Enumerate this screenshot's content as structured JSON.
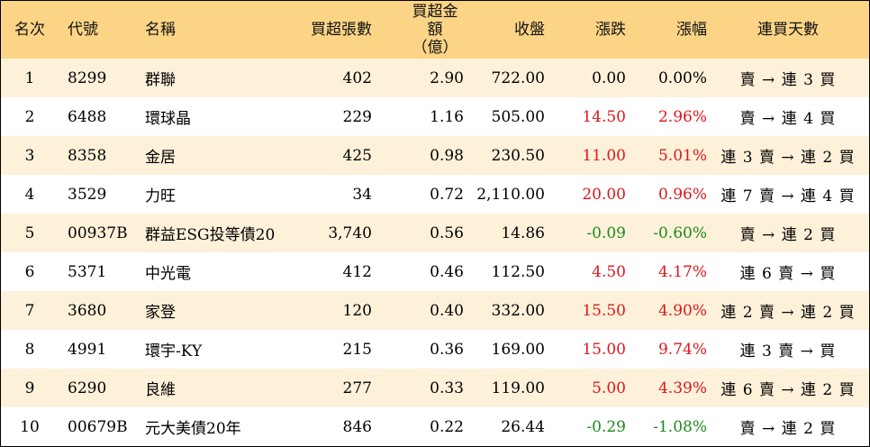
{
  "headers": {
    "rank": "名次",
    "code": "代號",
    "name": "名稱",
    "net_buy_lots": "買超張數",
    "net_buy_amount_line1": "買超金額",
    "net_buy_amount_line2": "（億）",
    "close": "收盤",
    "change": "漲跌",
    "change_pct": "漲幅",
    "consecutive_days": "連買天數"
  },
  "rows": [
    {
      "rank": "1",
      "code": "8299",
      "name": "群聯",
      "lots": "402",
      "amount": "2.90",
      "close": "722.00",
      "change": "0.00",
      "pct": "0.00%",
      "trend": "flat",
      "days": "賣 → 連 3 買"
    },
    {
      "rank": "2",
      "code": "6488",
      "name": "環球晶",
      "lots": "229",
      "amount": "1.16",
      "close": "505.00",
      "change": "14.50",
      "pct": "2.96%",
      "trend": "pos",
      "days": "賣 → 連 4 買"
    },
    {
      "rank": "3",
      "code": "8358",
      "name": "金居",
      "lots": "425",
      "amount": "0.98",
      "close": "230.50",
      "change": "11.00",
      "pct": "5.01%",
      "trend": "pos",
      "days": "連 3 賣 → 連 2 買"
    },
    {
      "rank": "4",
      "code": "3529",
      "name": "力旺",
      "lots": "34",
      "amount": "0.72",
      "close": "2,110.00",
      "change": "20.00",
      "pct": "0.96%",
      "trend": "pos",
      "days": "連 7 賣 → 連 4 買"
    },
    {
      "rank": "5",
      "code": "00937B",
      "name": "群益ESG投等債20",
      "lots": "3,740",
      "amount": "0.56",
      "close": "14.86",
      "change": "-0.09",
      "pct": "-0.60%",
      "trend": "neg",
      "days": "賣 → 連 2 買"
    },
    {
      "rank": "6",
      "code": "5371",
      "name": "中光電",
      "lots": "412",
      "amount": "0.46",
      "close": "112.50",
      "change": "4.50",
      "pct": "4.17%",
      "trend": "pos",
      "days": "連 6 賣 → 買"
    },
    {
      "rank": "7",
      "code": "3680",
      "name": "家登",
      "lots": "120",
      "amount": "0.40",
      "close": "332.00",
      "change": "15.50",
      "pct": "4.90%",
      "trend": "pos",
      "days": "連 2 賣 → 連 2 買"
    },
    {
      "rank": "8",
      "code": "4991",
      "name": "環宇-KY",
      "lots": "215",
      "amount": "0.36",
      "close": "169.00",
      "change": "15.00",
      "pct": "9.74%",
      "trend": "pos",
      "days": "連 3 賣 → 買"
    },
    {
      "rank": "9",
      "code": "6290",
      "name": "良維",
      "lots": "277",
      "amount": "0.33",
      "close": "119.00",
      "change": "5.00",
      "pct": "4.39%",
      "trend": "pos",
      "days": "連 6 賣 → 連 2 買"
    },
    {
      "rank": "10",
      "code": "00679B",
      "name": "元大美債20年",
      "lots": "846",
      "amount": "0.22",
      "close": "26.44",
      "change": "-0.29",
      "pct": "-1.08%",
      "trend": "neg",
      "days": "賣 → 連 2 買"
    }
  ],
  "colors": {
    "header_bg": "#fcd486",
    "odd_row_bg": "#fdf1da",
    "even_row_bg": "#ffffff",
    "up": "#e0161b",
    "down": "#1d8a1d"
  }
}
